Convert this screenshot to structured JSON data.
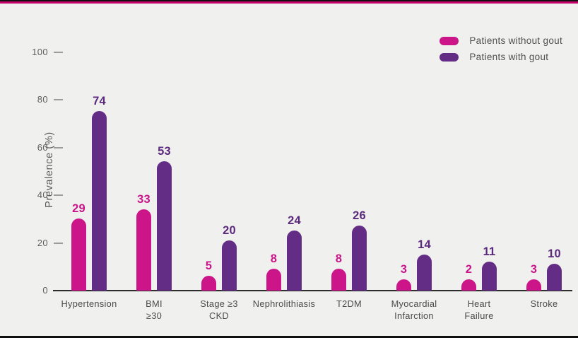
{
  "colors": {
    "background": "#f0f0ee",
    "top_black_line": "#101010",
    "top_pink_line": "#c2006c",
    "bottom_black_line": "#101010",
    "axis_line": "#2d2d2d",
    "tick_text": "#606060",
    "category_text": "#4b4b4b",
    "series_without_gout": "#cb1588",
    "series_with_gout": "#632c85",
    "label_without_gout": "#c9158a",
    "label_with_gout": "#5b2a7c"
  },
  "legend": {
    "items": [
      {
        "label": "Patients without gout",
        "color": "#cb1588"
      },
      {
        "label": "Patients with gout",
        "color": "#632c85"
      }
    ]
  },
  "chart_data": {
    "type": "bar",
    "title": "",
    "xlabel": "",
    "ylabel": "Prevalence (%)",
    "ylim": [
      0,
      100
    ],
    "yticks": [
      0,
      20,
      40,
      60,
      80,
      100
    ],
    "grid": false,
    "legend_position": "top-right",
    "categories": [
      {
        "id": "hypertension",
        "lines": [
          "Hypertension"
        ]
      },
      {
        "id": "bmi-ge-30",
        "lines": [
          "BMI",
          "≥30"
        ]
      },
      {
        "id": "stage-ge-3-ckd",
        "lines": [
          "Stage ≥3",
          "CKD"
        ]
      },
      {
        "id": "nephrolithiasis",
        "lines": [
          "Nephrolithiasis"
        ]
      },
      {
        "id": "t2dm",
        "lines": [
          "T2DM"
        ]
      },
      {
        "id": "myocardial-infarction",
        "lines": [
          "Myocardial",
          "Infarction"
        ]
      },
      {
        "id": "heart-failure",
        "lines": [
          "Heart",
          "Failure"
        ]
      },
      {
        "id": "stroke",
        "lines": [
          "Stroke"
        ]
      }
    ],
    "series": [
      {
        "name": "Patients without gout",
        "color": "#cb1588",
        "label_color": "#c9158a",
        "values": [
          29,
          33,
          5,
          8,
          8,
          3,
          2,
          3
        ]
      },
      {
        "name": "Patients with gout",
        "color": "#632c85",
        "label_color": "#5b2a7c",
        "values": [
          74,
          53,
          20,
          24,
          26,
          14,
          11,
          10
        ]
      }
    ]
  }
}
